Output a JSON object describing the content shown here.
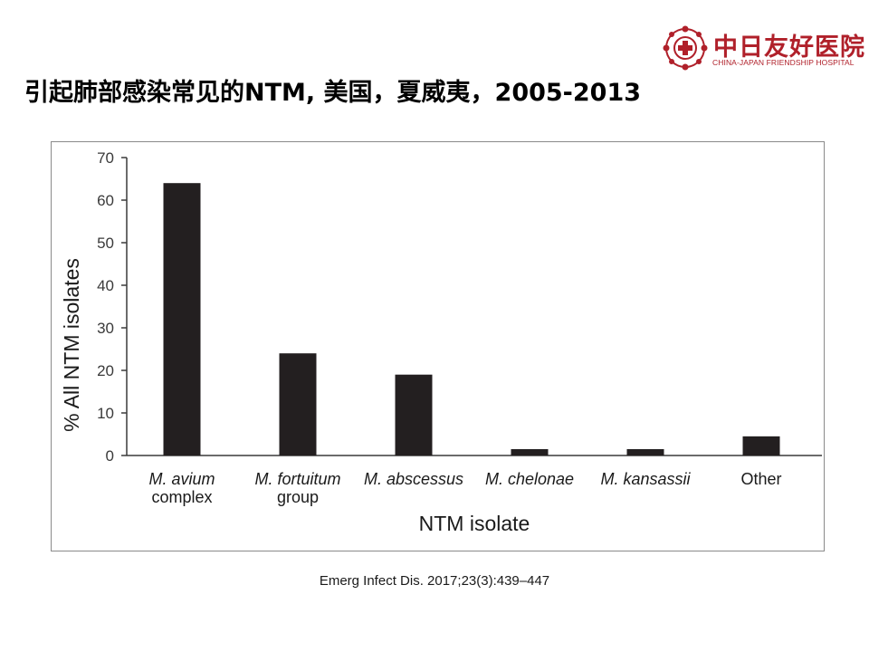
{
  "header": {
    "logo_name": "中日友好医院",
    "logo_english": "CHINA-JAPAN FRIENDSHIP HOSPITAL",
    "brand_color": "#b0202a"
  },
  "slide": {
    "title": "引起肺部感染常见的NTM, 美国，夏威夷，2005-2013",
    "citation": "Emerg Infect Dis. 2017;23(3):439–447"
  },
  "chart_data": {
    "type": "bar",
    "categories": [
      [
        "M. avium",
        "complex"
      ],
      [
        "M. fortuitum",
        "group"
      ],
      [
        "M. abscessus"
      ],
      [
        "M. chelonae"
      ],
      [
        "M. kansassii"
      ],
      [
        "Other"
      ]
    ],
    "category_italic": [
      true,
      true,
      true,
      true,
      true,
      false
    ],
    "values": [
      64,
      24,
      19,
      1.5,
      1.5,
      4.5
    ],
    "xlabel": "NTM isolate",
    "ylabel": "% All NTM isolates",
    "ylim": [
      0,
      70
    ],
    "yticks": [
      0,
      10,
      20,
      30,
      40,
      50,
      60,
      70
    ],
    "grid": false,
    "bar_color": "#231f20"
  }
}
